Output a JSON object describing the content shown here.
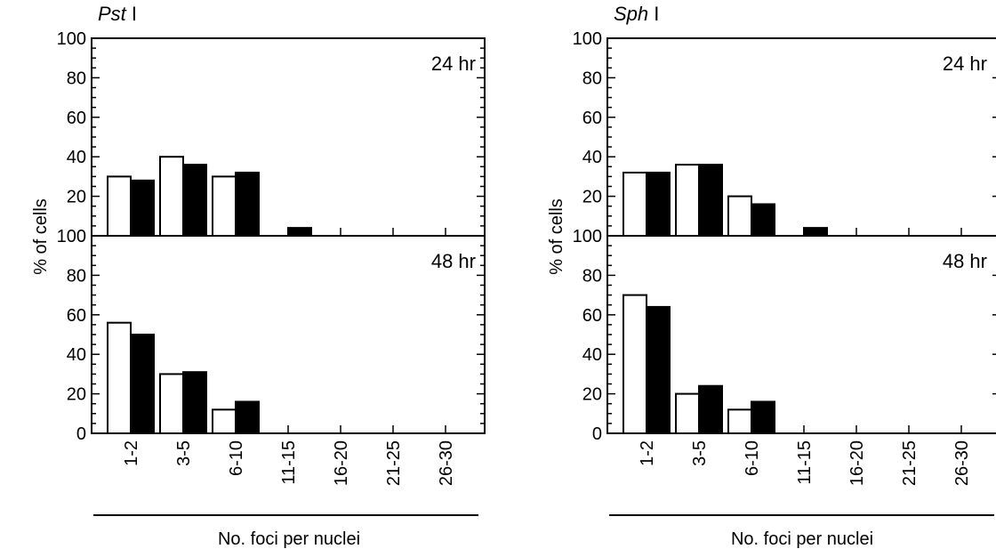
{
  "colors": {
    "open_bar": "#ffffff",
    "filled_bar": "#000000",
    "axis": "#000000"
  },
  "chart_data": [
    {
      "type": "bar",
      "title_italic": "Pst",
      "title_suffix": " I",
      "ylabel": "% of cells",
      "xlabel": "No. foci per nuclei",
      "categories": [
        "1-2",
        "3-5",
        "6-10",
        "11-15",
        "16-20",
        "21-25",
        "26-30"
      ],
      "ylim": [
        0,
        100
      ],
      "yticks": [
        "0",
        "20",
        "40",
        "60",
        "80",
        "100"
      ],
      "panels": [
        {
          "label": "24 hr",
          "series": [
            {
              "fill": "open",
              "values": [
                30,
                40,
                30,
                0,
                0,
                0,
                0
              ]
            },
            {
              "fill": "filled",
              "values": [
                28,
                36,
                32,
                4,
                0,
                0,
                0
              ]
            }
          ]
        },
        {
          "label": "48 hr",
          "series": [
            {
              "fill": "open",
              "values": [
                56,
                30,
                12,
                0,
                0,
                0,
                0
              ]
            },
            {
              "fill": "filled",
              "values": [
                50,
                31,
                16,
                0,
                0,
                0,
                0
              ]
            }
          ]
        }
      ]
    },
    {
      "type": "bar",
      "title_italic": "Sph",
      "title_suffix": " I",
      "ylabel": "% of cells",
      "xlabel": "No. foci per nuclei",
      "categories": [
        "1-2",
        "3-5",
        "6-10",
        "11-15",
        "16-20",
        "21-25",
        "26-30"
      ],
      "ylim": [
        0,
        100
      ],
      "yticks": [
        "0",
        "20",
        "40",
        "60",
        "80",
        "100"
      ],
      "panels": [
        {
          "label": "24 hr",
          "series": [
            {
              "fill": "open",
              "values": [
                32,
                36,
                20,
                0,
                0,
                0,
                0
              ]
            },
            {
              "fill": "filled",
              "values": [
                32,
                36,
                16,
                4,
                0,
                0,
                0
              ]
            }
          ]
        },
        {
          "label": "48 hr",
          "series": [
            {
              "fill": "open",
              "values": [
                70,
                20,
                12,
                0,
                0,
                0,
                0
              ]
            },
            {
              "fill": "filled",
              "values": [
                64,
                24,
                16,
                0,
                0,
                0,
                0
              ]
            }
          ]
        }
      ]
    }
  ]
}
